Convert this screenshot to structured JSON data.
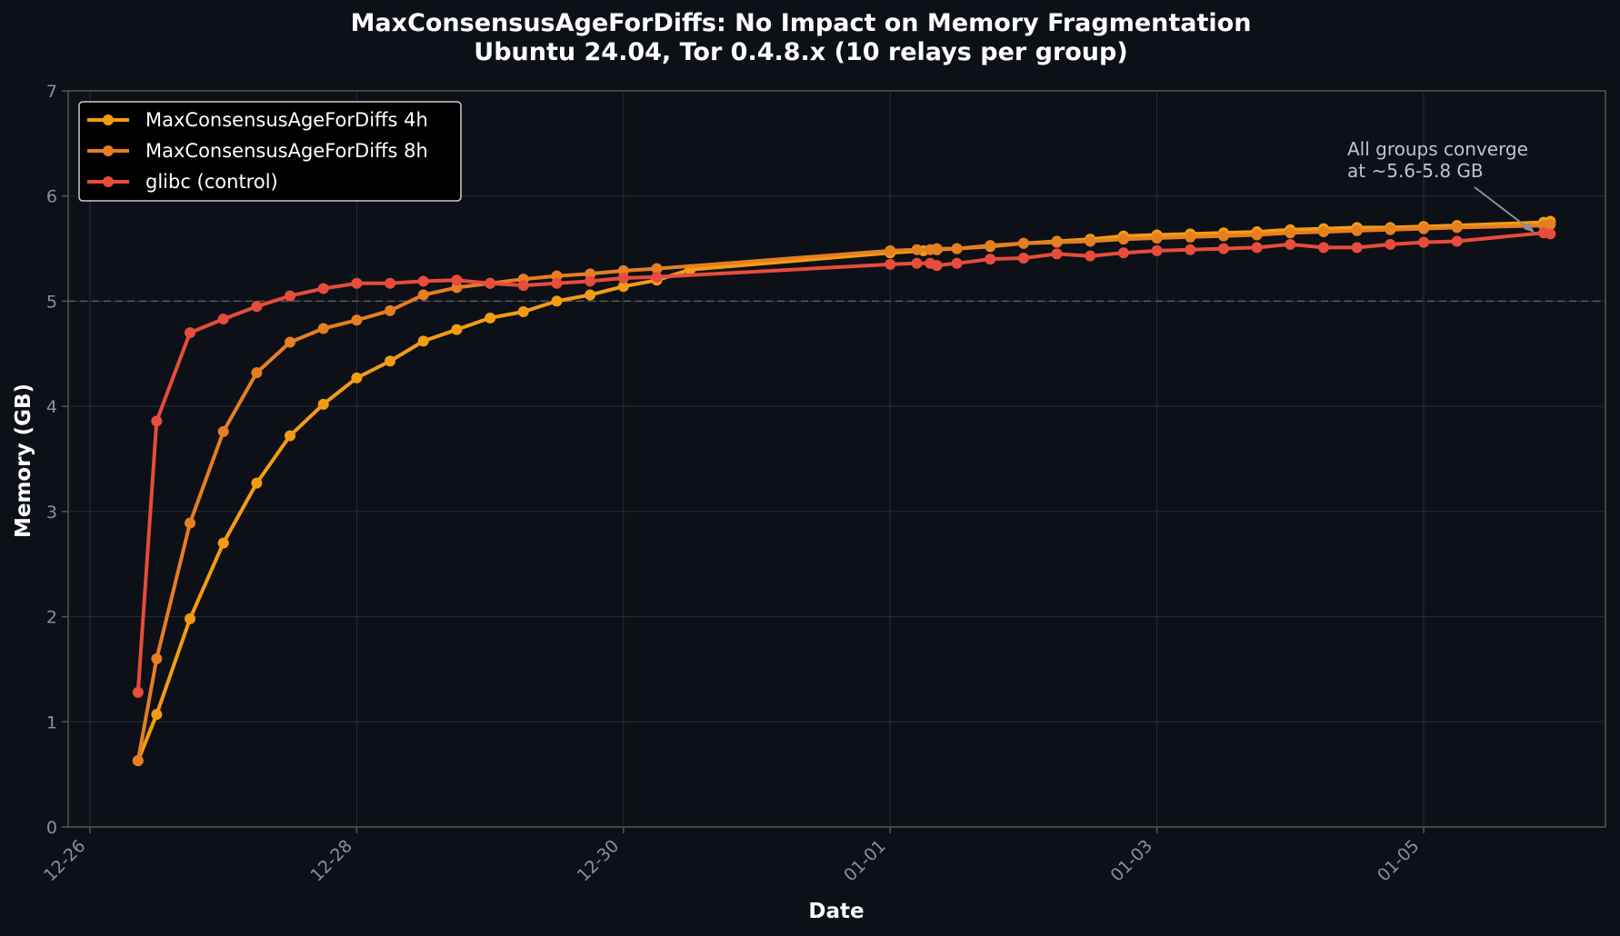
{
  "title_line1": "MaxConsensusAgeForDiffs: No Impact on Memory Fragmentation",
  "title_line2": "Ubuntu 24.04, Tor 0.4.8.x (10 relays per group)",
  "xlabel": "Date",
  "ylabel": "Memory (GB)",
  "annotation_line1": "All groups converge",
  "annotation_line2": "at ~5.6-5.8 GB",
  "colors": {
    "background": "#0d1117",
    "series_4h": "#f39c12",
    "series_8h": "#e67e22",
    "series_glibc": "#e74c3c",
    "grid": "#2a2d33",
    "axis": "#555555",
    "tick_text": "#8b8f96"
  },
  "chart_data": {
    "type": "line",
    "title": "MaxConsensusAgeForDiffs: No Impact on Memory Fragmentation\nUbuntu 24.04, Tor 0.4.8.x (10 relays per group)",
    "xlabel": "Date",
    "ylabel": "Memory (GB)",
    "ylim": [
      0,
      7
    ],
    "yticks": [
      0,
      1,
      2,
      3,
      4,
      5,
      6,
      7
    ],
    "xticks": [
      "12-26",
      "12-28",
      "12-30",
      "01-01",
      "01-03",
      "01-05"
    ],
    "x_unit": "days since 12-26 00:00",
    "grid": true,
    "reference_line": {
      "y": 5,
      "style": "dashed"
    },
    "legend_position": "upper left",
    "legend": [
      "MaxConsensusAgeForDiffs 4h",
      "MaxConsensusAgeForDiffs 8h",
      "glibc (control)"
    ],
    "annotation": {
      "text": "All groups converge\nat ~5.6-5.8 GB",
      "points_to": {
        "x": 10.95,
        "y": 5.7
      }
    },
    "series": [
      {
        "name": "MaxConsensusAgeForDiffs 4h",
        "color": "#f39c12",
        "x": [
          0.36,
          0.5,
          0.75,
          1.0,
          1.25,
          1.5,
          1.75,
          2.0,
          2.25,
          2.5,
          2.75,
          3.0,
          3.25,
          3.5,
          3.75,
          4.0,
          4.25,
          4.5,
          6.0,
          6.25,
          6.35,
          6.5,
          6.75,
          7.0,
          7.25,
          7.5,
          7.75,
          8.0,
          8.25,
          8.5,
          8.75,
          9.0,
          9.25,
          9.5,
          9.75,
          10.0,
          10.25,
          10.9,
          10.95
        ],
        "y": [
          0.63,
          1.07,
          1.98,
          2.7,
          3.27,
          3.72,
          4.02,
          4.27,
          4.43,
          4.62,
          4.73,
          4.84,
          4.9,
          5.0,
          5.06,
          5.14,
          5.2,
          5.3,
          5.46,
          5.48,
          5.49,
          5.5,
          5.52,
          5.55,
          5.57,
          5.59,
          5.62,
          5.63,
          5.64,
          5.65,
          5.66,
          5.68,
          5.69,
          5.7,
          5.7,
          5.71,
          5.72,
          5.75,
          5.76
        ]
      },
      {
        "name": "MaxConsensusAgeForDiffs 8h",
        "color": "#e67e22",
        "x": [
          0.36,
          0.5,
          0.75,
          1.0,
          1.25,
          1.5,
          1.75,
          2.0,
          2.25,
          2.5,
          2.75,
          3.0,
          3.25,
          3.5,
          3.75,
          4.0,
          4.25,
          6.0,
          6.2,
          6.3,
          6.35,
          6.5,
          6.75,
          7.0,
          7.25,
          7.5,
          7.75,
          8.0,
          8.25,
          8.5,
          8.75,
          9.0,
          9.25,
          9.5,
          9.75,
          10.0,
          10.25,
          10.9,
          10.95
        ],
        "y": [
          0.63,
          1.6,
          2.89,
          3.76,
          4.32,
          4.61,
          4.74,
          4.82,
          4.91,
          5.06,
          5.13,
          5.17,
          5.21,
          5.24,
          5.26,
          5.29,
          5.31,
          5.48,
          5.49,
          5.49,
          5.5,
          5.5,
          5.53,
          5.55,
          5.56,
          5.57,
          5.59,
          5.6,
          5.61,
          5.62,
          5.63,
          5.65,
          5.66,
          5.67,
          5.68,
          5.69,
          5.7,
          5.72,
          5.73
        ]
      },
      {
        "name": "glibc (control)",
        "color": "#e74c3c",
        "x": [
          0.36,
          0.5,
          0.75,
          1.0,
          1.25,
          1.5,
          1.75,
          2.0,
          2.25,
          2.5,
          2.75,
          3.0,
          3.25,
          3.5,
          3.75,
          4.0,
          4.25,
          6.0,
          6.2,
          6.3,
          6.35,
          6.5,
          6.75,
          7.0,
          7.25,
          7.5,
          7.75,
          8.0,
          8.25,
          8.5,
          8.75,
          9.0,
          9.25,
          9.5,
          9.75,
          10.0,
          10.25,
          10.9,
          10.95
        ],
        "y": [
          1.28,
          3.86,
          4.7,
          4.83,
          4.95,
          5.05,
          5.12,
          5.17,
          5.17,
          5.19,
          5.2,
          5.17,
          5.15,
          5.17,
          5.19,
          5.22,
          5.23,
          5.35,
          5.36,
          5.36,
          5.34,
          5.36,
          5.4,
          5.41,
          5.45,
          5.43,
          5.46,
          5.48,
          5.49,
          5.5,
          5.51,
          5.54,
          5.51,
          5.51,
          5.54,
          5.56,
          5.57,
          5.65,
          5.64
        ]
      }
    ]
  }
}
